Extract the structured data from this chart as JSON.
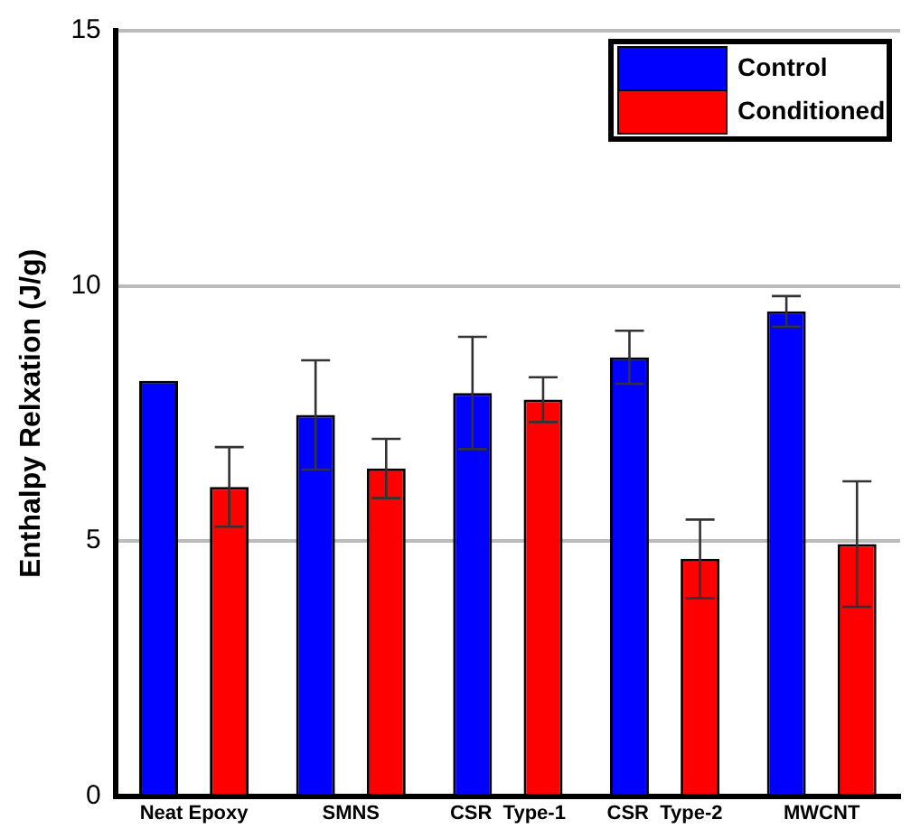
{
  "chart_data": {
    "type": "bar",
    "ylabel": "Enthalpy Relxation (J/g)",
    "categories": [
      "Neat Epoxy",
      "SMNS",
      "CSR  Type-1",
      "CSR  Type-2",
      "MWCNT"
    ],
    "series": [
      {
        "name": "Control",
        "color": "#0000ff",
        "values": [
          8.14,
          7.47,
          7.9,
          8.6,
          9.5
        ],
        "errors": [
          null,
          1.07,
          1.1,
          0.52,
          0.3
        ]
      },
      {
        "name": "Conditioned",
        "color": "#ff0000",
        "values": [
          6.06,
          6.42,
          7.77,
          4.65,
          4.94
        ],
        "errors": [
          0.78,
          0.58,
          0.44,
          0.77,
          1.23
        ]
      }
    ],
    "ylim": [
      0,
      15
    ],
    "yticks": [
      0,
      5,
      10,
      15
    ],
    "grid": "y",
    "legend": "top right"
  }
}
